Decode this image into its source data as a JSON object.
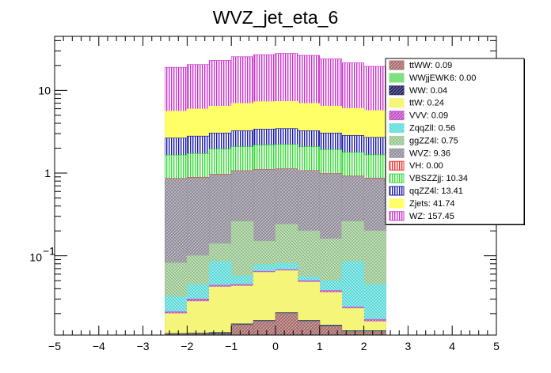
{
  "chart_data": {
    "type": "bar",
    "title": "WVZ_jet_eta_6",
    "xlabel": "",
    "ylabel": "",
    "xlim": [
      -5,
      5
    ],
    "ylim": [
      0.011,
      45
    ],
    "yscale": "log",
    "x_ticks": [
      "−5",
      "−4",
      "−3",
      "−2",
      "−1",
      "0",
      "1",
      "2",
      "3",
      "4",
      "5"
    ],
    "y_ticks": [
      {
        "value": 0.1,
        "base": "10",
        "exp": "−1"
      },
      {
        "value": 1,
        "label": "1"
      },
      {
        "value": 10,
        "label": "10"
      }
    ],
    "stacked": true,
    "bin_edges": [
      -2.5,
      -2,
      -1.5,
      -1,
      -0.5,
      0,
      0.5,
      1,
      1.5,
      2,
      2.5
    ],
    "cumulative_tops": {
      "ttWW": [
        0.0112,
        0.0112,
        0.0112,
        0.0145,
        0.016,
        0.02,
        0.016,
        0.014,
        0.012,
        0.012
      ],
      "WWjjEWK6": [
        0.0113,
        0.0113,
        0.0113,
        0.0146,
        0.0161,
        0.0201,
        0.0161,
        0.0141,
        0.0121,
        0.0121
      ],
      "WW": [
        0.0115,
        0.0116,
        0.0118,
        0.015,
        0.0165,
        0.0205,
        0.0165,
        0.0145,
        0.0124,
        0.0124
      ],
      "ttW": [
        0.02,
        0.028,
        0.042,
        0.043,
        0.063,
        0.066,
        0.048,
        0.036,
        0.023,
        0.016
      ],
      "VVV": [
        0.021,
        0.03,
        0.044,
        0.045,
        0.065,
        0.068,
        0.05,
        0.038,
        0.024,
        0.017
      ],
      "ZqqZll": [
        0.032,
        0.045,
        0.085,
        0.057,
        0.078,
        0.081,
        0.056,
        0.05,
        0.085,
        0.045
      ],
      "ggZZ4l": [
        0.082,
        0.1,
        0.14,
        0.26,
        0.15,
        0.24,
        0.2,
        0.16,
        0.26,
        0.2
      ],
      "WVZ": [
        0.85,
        0.88,
        0.96,
        1.06,
        1.1,
        1.12,
        1.06,
        0.98,
        0.91,
        0.86
      ],
      "VH": [
        0.86,
        0.89,
        0.97,
        1.07,
        1.11,
        1.13,
        1.07,
        0.99,
        0.92,
        0.87
      ],
      "VBSZZjj": [
        1.65,
        1.72,
        1.95,
        2.08,
        2.18,
        2.22,
        2.08,
        1.92,
        1.78,
        1.66
      ],
      "qqZZ4l": [
        2.65,
        2.8,
        3.05,
        3.25,
        3.4,
        3.45,
        3.25,
        3.05,
        2.85,
        2.7
      ],
      "Zjets": [
        5.6,
        5.95,
        6.45,
        6.95,
        7.3,
        7.35,
        6.95,
        6.45,
        6.05,
        5.7
      ],
      "WZ": [
        19.0,
        20.5,
        23.0,
        25.5,
        27.0,
        28.0,
        26.5,
        24.0,
        21.5,
        19.5
      ]
    },
    "series": [
      {
        "key": "WZ",
        "name": "WZ: 157.45",
        "color": "#cc33cc",
        "pattern": "vlines"
      },
      {
        "key": "Zjets",
        "name": "Zjets: 41.74",
        "color": "#ffff66",
        "pattern": "solid"
      },
      {
        "key": "qqZZ4l",
        "name": "qqZZ4l: 13.41",
        "color": "#1a1aaa",
        "pattern": "vlines"
      },
      {
        "key": "VBSZZjj",
        "name": "VBSZZjj: 10.34",
        "color": "#33dd33",
        "pattern": "vlines"
      },
      {
        "key": "VH",
        "name": "VH: 0.00",
        "color": "#ee3333",
        "pattern": "vlines"
      },
      {
        "key": "WVZ",
        "name": "WVZ: 9.36",
        "color": "#9b95a3",
        "pattern": "hatch"
      },
      {
        "key": "ggZZ4l",
        "name": "ggZZ4l: 0.75",
        "color": "#a3d19a",
        "pattern": "hatch"
      },
      {
        "key": "ZqqZll",
        "name": "ZqqZll: 0.56",
        "color": "#66e6e6",
        "pattern": "hatch"
      },
      {
        "key": "VVV",
        "name": "VVV: 0.09",
        "color": "#cc55cc",
        "pattern": "hatch"
      },
      {
        "key": "ttW",
        "name": "ttW: 0.24",
        "color": "#f5f57a",
        "pattern": "solid"
      },
      {
        "key": "WW",
        "name": "WW: 0.04",
        "color": "#222266",
        "pattern": "hatch"
      },
      {
        "key": "WWjjEWK6",
        "name": "WWjjEWK6: 0.00",
        "color": "#7ee07e",
        "pattern": "solid"
      },
      {
        "key": "ttWW",
        "name": "ttWW: 0.09",
        "color": "#b07070",
        "pattern": "hatch"
      }
    ],
    "legend": {
      "position": "top-right",
      "entries": [
        "ttWW: 0.09",
        "WWjjEWK6: 0.00",
        "WW: 0.04",
        "ttW: 0.24",
        "VVV: 0.09",
        "ZqqZll: 0.56",
        "ggZZ4l: 0.75",
        "WVZ: 9.36",
        "VH: 0.00",
        "VBSZZjj: 10.34",
        "qqZZ4l: 13.41",
        "Zjets: 41.74",
        "WZ: 157.45"
      ]
    }
  }
}
